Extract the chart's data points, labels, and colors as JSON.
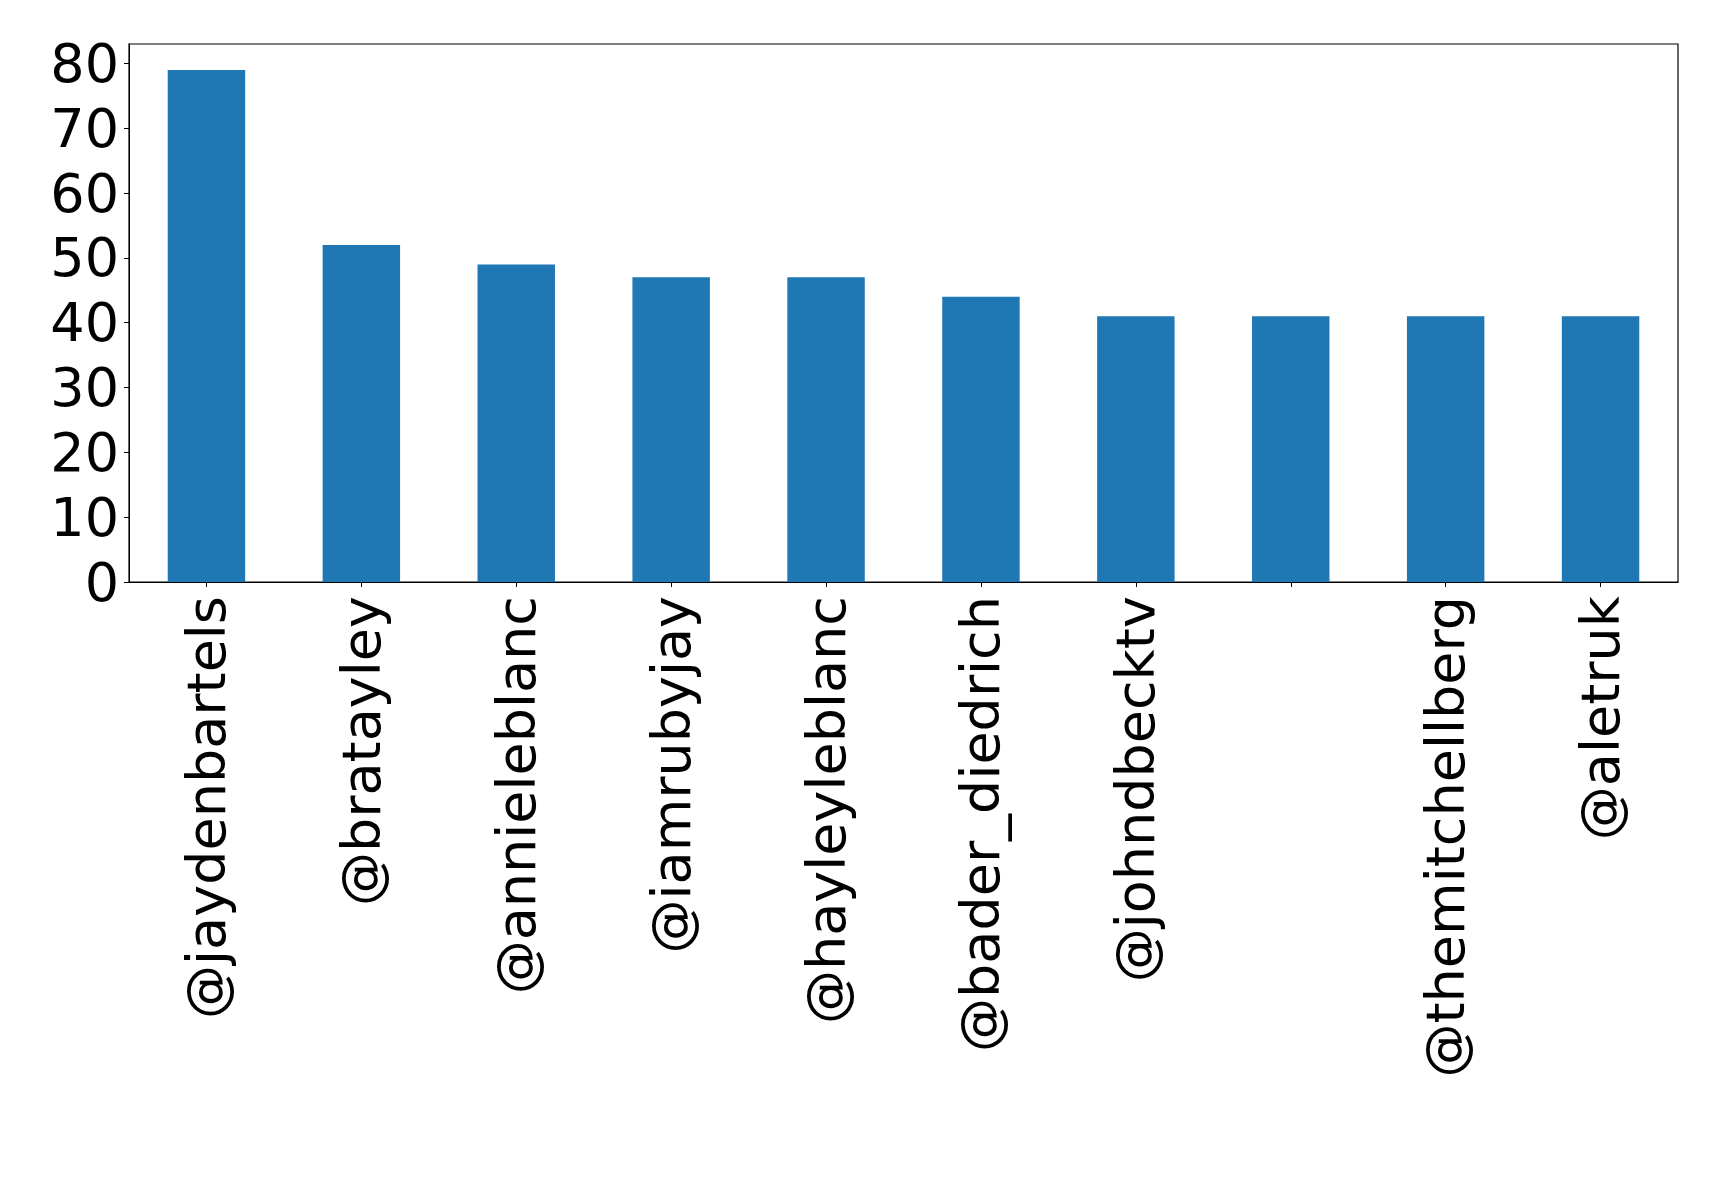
{
  "chart_data": {
    "type": "bar",
    "categories": [
      "@jaydenbartels",
      "@bratayley",
      "@annieleblanc",
      "@iamrubyjay",
      "@hayleyleblanc",
      "@bader_diedrich",
      "@johndbecktv",
      null,
      "@themitchellberg",
      "@aletruk"
    ],
    "values": [
      79,
      52,
      49,
      47,
      47,
      44,
      41,
      41,
      41,
      41
    ],
    "color": "#1f77b4",
    "ylim": [
      0,
      83
    ],
    "yticks": [
      0,
      10,
      20,
      30,
      40,
      50,
      60,
      70,
      80
    ],
    "grid": false
  }
}
